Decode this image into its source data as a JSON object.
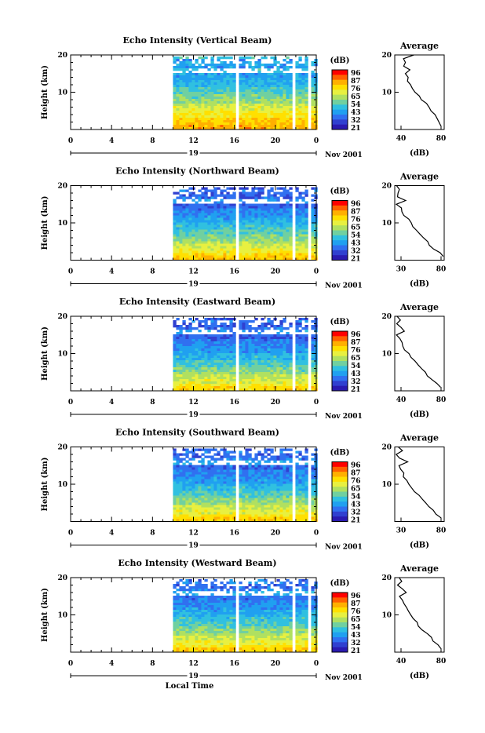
{
  "colorbar": {
    "unit": "(dB)",
    "ticks": [
      "96",
      "87",
      "76",
      "65",
      "54",
      "43",
      "32",
      "21"
    ],
    "colors": [
      "#ff0000",
      "#ff6000",
      "#ffb000",
      "#ffe000",
      "#e8f040",
      "#b0e060",
      "#70d0a0",
      "#30c0e0",
      "#20a0f0",
      "#3070f0",
      "#3040d0",
      "#2a1ab0"
    ]
  },
  "shared_axes": {
    "xticks": [
      "0",
      "4",
      "8",
      "12",
      "16",
      "20",
      "0"
    ],
    "day_label": "19",
    "month_label": "Nov 2001",
    "ylabel": "Height (km)",
    "yticks": [
      "20",
      "10"
    ],
    "xlabel_bottom": "Local Time",
    "profile_title": "Average",
    "profile_unit": "(dB)"
  },
  "panels": [
    {
      "title": "Echo Intensity (Vertical Beam)",
      "profile_xticks": [
        "40",
        "80"
      ],
      "profile_range": [
        30,
        85
      ]
    },
    {
      "title": "Echo Intensity (Northward Beam)",
      "profile_xticks": [
        "30",
        "80"
      ],
      "profile_range": [
        30,
        80
      ]
    },
    {
      "title": "Echo Intensity (Eastward Beam)",
      "profile_xticks": [
        "40",
        "80"
      ],
      "profile_range": [
        30,
        80
      ]
    },
    {
      "title": "Echo Intensity (Southward Beam)",
      "profile_xticks": [
        "30",
        "80"
      ],
      "profile_range": [
        30,
        80
      ]
    },
    {
      "title": "Echo Intensity (Westward Beam)",
      "profile_xticks": [
        "40",
        "80"
      ],
      "profile_range": [
        30,
        80
      ]
    }
  ],
  "chart_data": {
    "type": "heatmap",
    "x_range_hours": [
      0,
      24
    ],
    "data_start_hour": 10,
    "data_gaps_hours": [
      [
        15.9,
        16.3
      ],
      [
        21.5,
        21.9
      ],
      [
        22.9,
        23.2
      ]
    ],
    "y_range_km": [
      0,
      20
    ],
    "color_range_db": [
      21,
      96
    ],
    "profiles": [
      {
        "beam": "Vertical",
        "height_km": [
          1,
          2,
          3,
          4,
          5,
          6,
          7,
          8,
          9,
          10,
          11,
          12,
          13,
          14,
          15,
          16,
          17,
          18,
          19,
          20
        ],
        "db": [
          82,
          80,
          78,
          74,
          71,
          68,
          64,
          60,
          56,
          53,
          50,
          47,
          45,
          44,
          42,
          48,
          41,
          43,
          40,
          50
        ]
      },
      {
        "beam": "Northward",
        "height_km": [
          1,
          2,
          3,
          4,
          5,
          6,
          7,
          8,
          9,
          10,
          11,
          12,
          13,
          14,
          15,
          16,
          17,
          18,
          19,
          20
        ],
        "db": [
          78,
          75,
          70,
          66,
          62,
          58,
          55,
          52,
          49,
          46,
          43,
          40,
          38,
          36,
          33,
          40,
          34,
          32,
          36,
          31
        ]
      },
      {
        "beam": "Eastward",
        "height_km": [
          1,
          2,
          3,
          4,
          5,
          6,
          7,
          8,
          9,
          10,
          11,
          12,
          13,
          14,
          15,
          16,
          17,
          18,
          19,
          20
        ],
        "db": [
          76,
          72,
          68,
          64,
          60,
          56,
          53,
          50,
          47,
          44,
          41,
          39,
          37,
          35,
          33,
          41,
          35,
          32,
          36,
          32
        ]
      },
      {
        "beam": "Southward",
        "height_km": [
          1,
          2,
          3,
          4,
          5,
          6,
          7,
          8,
          9,
          10,
          11,
          12,
          13,
          14,
          15,
          16,
          17,
          18,
          19,
          20
        ],
        "db": [
          77,
          73,
          69,
          65,
          61,
          57,
          54,
          51,
          48,
          45,
          42,
          40,
          38,
          36,
          34,
          42,
          36,
          33,
          37,
          33
        ]
      },
      {
        "beam": "Westward",
        "height_km": [
          1,
          2,
          3,
          4,
          5,
          6,
          7,
          8,
          9,
          10,
          11,
          12,
          13,
          14,
          15,
          16,
          17,
          18,
          19,
          20
        ],
        "db": [
          78,
          74,
          70,
          66,
          62,
          58,
          55,
          52,
          49,
          46,
          43,
          41,
          39,
          37,
          35,
          43,
          37,
          34,
          38,
          34
        ]
      }
    ]
  }
}
